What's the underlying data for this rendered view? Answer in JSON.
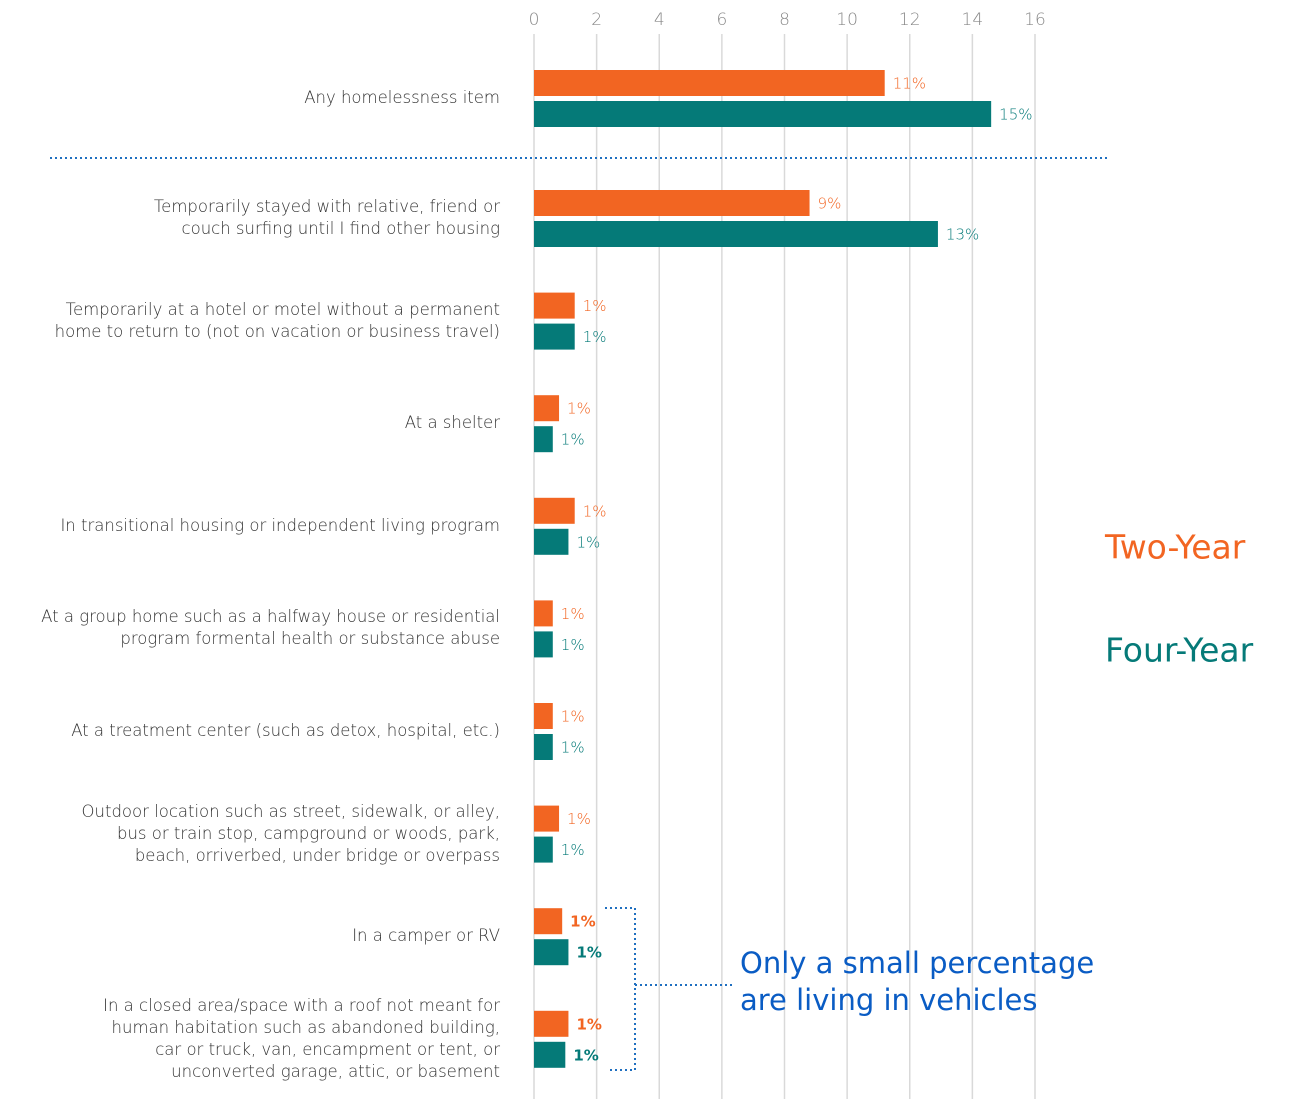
{
  "chart_data": {
    "type": "barh",
    "categories": [
      "Any homelessness item",
      "Temporarily stayed with relative, friend or \ncouch surfing until I find other housing",
      "Temporarily at a hotel or motel without a permanent \nhome to return to (not on vacation or business travel)",
      "At a shelter",
      "In transitional housing or independent living program",
      "At a group home such as a halfway house or residential\nprogram formental health or substance abuse",
      "At a treatment center (such as detox, hospital, etc.)",
      "Outdoor location such as street, sidewalk, or alley,\nbus or train stop, campground or woods, park,\nbeach, orriverbed, under bridge or overpass",
      "In a camper or RV",
      "In a closed area/space with a roof not meant for\nhuman habitation such as abandoned building,\ncar or truck, van, encampment or tent, or\nunconverted garage, attic, or basement"
    ],
    "series": [
      {
        "name": "Two-Year",
        "color": "#f26522",
        "values": [
          11.2,
          8.8,
          1.3,
          0.8,
          1.3,
          0.6,
          0.6,
          0.8,
          0.9,
          1.1
        ],
        "value_labels": [
          "11%",
          "9%",
          "1%",
          "1%",
          "1%",
          "1%",
          "1%",
          "1%",
          "1%",
          "1%"
        ]
      },
      {
        "name": "Four-Year",
        "color": "#057a78",
        "values": [
          14.6,
          12.9,
          1.3,
          0.6,
          1.1,
          0.6,
          0.6,
          0.6,
          1.1,
          1.0
        ],
        "value_labels": [
          "15%",
          "13%",
          "1%",
          "1%",
          "1%",
          "1%",
          "1%",
          "1%",
          "1%",
          "1%"
        ]
      }
    ],
    "xlim": [
      0,
      16
    ],
    "xticks": [
      0,
      2,
      4,
      6,
      8,
      10,
      12,
      14,
      16
    ],
    "grid": true,
    "annotation": [
      "Only a small percentage",
      "are living in vehicles"
    ]
  }
}
